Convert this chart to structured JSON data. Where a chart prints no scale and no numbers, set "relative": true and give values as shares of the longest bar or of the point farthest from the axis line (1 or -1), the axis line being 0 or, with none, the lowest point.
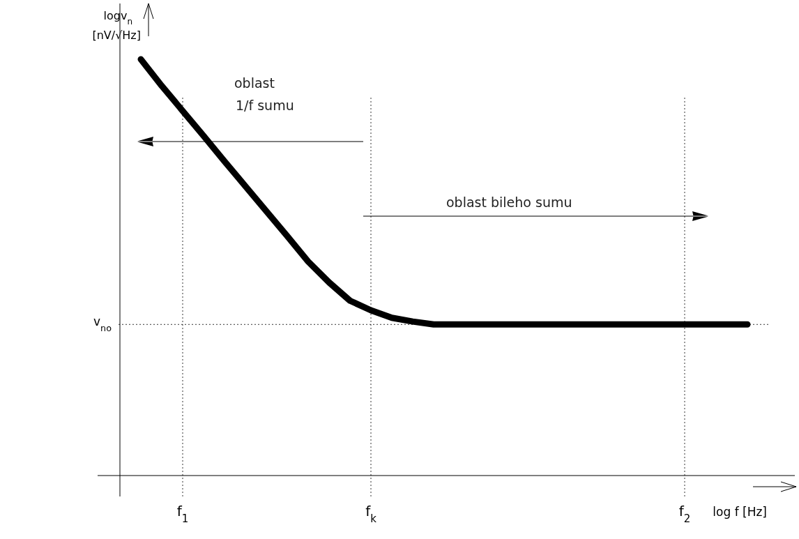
{
  "chart_data": {
    "type": "line",
    "relative": true,
    "xlabel": "log f [Hz]",
    "ylabel": "logv$_{n}$ [nV/√Hz]",
    "categories": [
      null,
      null,
      null,
      "f$_{1}$",
      null,
      null,
      null,
      null,
      null,
      null,
      null,
      null,
      "f$_{k}$",
      null,
      null,
      null,
      null,
      null,
      null,
      null,
      null,
      null,
      null,
      null,
      null,
      null,
      null,
      "f$_{2}$",
      null,
      null,
      null,
      null
    ],
    "series": [
      {
        "color": "#000000",
        "values": [
          null,
          1,
          0.936,
          0.876,
          0.816,
          0.755,
          0.695,
          0.635,
          0.575,
          0.514,
          0.464,
          0.42,
          0.397,
          0.379,
          0.37,
          0.363,
          0.363,
          0.363,
          0.363,
          0.363,
          0.363,
          0.363,
          0.363,
          0.363,
          0.363,
          0.363,
          0.363,
          0.363,
          0.363,
          0.363,
          0.363,
          null
        ]
      }
    ],
    "ref_lines": [
      {
        "axis": "y",
        "value": 0.363,
        "label": "v$_{no}$",
        "line_style": "dotted"
      },
      {
        "axis": "x",
        "value": "f$_{1}$",
        "line_style": "dotted"
      },
      {
        "axis": "x",
        "value": "f$_{k}$",
        "line_style": "dotted"
      },
      {
        "axis": "x",
        "value": "f$_{2}$",
        "line_style": "dotted"
      }
    ],
    "annotations": [
      "oblast\n1/f sumu",
      "oblast bileho sumu"
    ],
    "marker": "none",
    "line_style": "solid"
  }
}
